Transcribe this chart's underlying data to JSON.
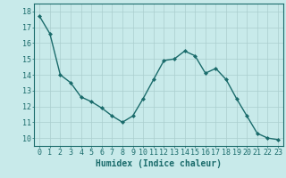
{
  "x": [
    0,
    1,
    2,
    3,
    4,
    5,
    6,
    7,
    8,
    9,
    10,
    11,
    12,
    13,
    14,
    15,
    16,
    17,
    18,
    19,
    20,
    21,
    22,
    23
  ],
  "y": [
    17.7,
    16.6,
    14.0,
    13.5,
    12.6,
    12.3,
    11.9,
    11.4,
    11.0,
    11.4,
    12.5,
    13.7,
    14.9,
    15.0,
    15.5,
    15.2,
    14.1,
    14.4,
    13.7,
    12.5,
    11.4,
    10.3,
    10.0,
    9.9
  ],
  "line_color": "#1a6b6b",
  "marker": "D",
  "marker_size": 2,
  "bg_color": "#c8eaea",
  "grid_color": "#aacece",
  "xlabel": "Humidex (Indice chaleur)",
  "xlabel_fontsize": 7,
  "tick_fontsize": 6,
  "ylim": [
    9.5,
    18.5
  ],
  "xlim": [
    -0.5,
    23.5
  ],
  "yticks": [
    10,
    11,
    12,
    13,
    14,
    15,
    16,
    17,
    18
  ],
  "xticks": [
    0,
    1,
    2,
    3,
    4,
    5,
    6,
    7,
    8,
    9,
    10,
    11,
    12,
    13,
    14,
    15,
    16,
    17,
    18,
    19,
    20,
    21,
    22,
    23
  ],
  "linewidth": 1.0
}
